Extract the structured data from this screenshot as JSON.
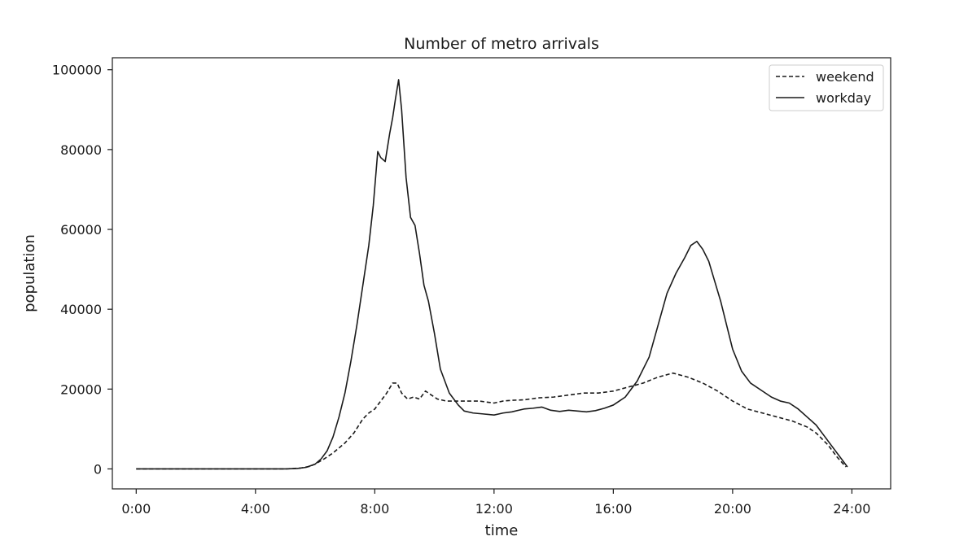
{
  "chart_data": {
    "type": "line",
    "title": "Number of metro arrivals",
    "xlabel": "time",
    "ylabel": "population",
    "xlim": [
      -0.8,
      25.3
    ],
    "ylim": [
      -5000,
      103000
    ],
    "xticks": [
      0,
      4,
      8,
      12,
      16,
      20,
      24
    ],
    "xtick_labels": [
      "0:00",
      "4:00",
      "8:00",
      "12:00",
      "16:00",
      "20:00",
      "24:00"
    ],
    "yticks": [
      0,
      20000,
      40000,
      60000,
      80000,
      100000
    ],
    "ytick_labels": [
      "0",
      "20000",
      "40000",
      "60000",
      "80000",
      "100000"
    ],
    "grid": false,
    "legend_position": "top-right",
    "series": [
      {
        "name": "weekend",
        "style": "dashed",
        "color": "#1a1a1a",
        "x": [
          0,
          1,
          2,
          3,
          4,
          5,
          5.5,
          5.8,
          6,
          6.3,
          6.6,
          7,
          7.3,
          7.6,
          7.8,
          8,
          8.2,
          8.4,
          8.6,
          8.75,
          8.9,
          9.1,
          9.3,
          9.5,
          9.7,
          9.9,
          10.1,
          10.4,
          10.7,
          11,
          11.5,
          12,
          12.3,
          12.6,
          13,
          13.5,
          14,
          14.5,
          15,
          15.5,
          16,
          16.5,
          17,
          17.5,
          18,
          18.5,
          19,
          19.5,
          20,
          20.5,
          21,
          21.5,
          22,
          22.5,
          22.8,
          23.2,
          23.5,
          23.8
        ],
        "values": [
          0,
          0,
          0,
          0,
          0,
          0,
          200,
          600,
          1200,
          2500,
          4000,
          6500,
          9000,
          12500,
          14000,
          15000,
          17000,
          19000,
          21500,
          21500,
          19000,
          17500,
          18000,
          17500,
          19500,
          18500,
          17500,
          17000,
          17000,
          17000,
          17000,
          16500,
          17000,
          17200,
          17300,
          17800,
          18000,
          18500,
          19000,
          19000,
          19500,
          20500,
          21500,
          23000,
          24000,
          23000,
          21500,
          19500,
          17000,
          15000,
          14000,
          13000,
          12000,
          10500,
          9000,
          6000,
          3000,
          500
        ]
      },
      {
        "name": "workday",
        "style": "solid",
        "color": "#1a1a1a",
        "x": [
          0,
          1,
          2,
          3,
          4,
          5,
          5.4,
          5.7,
          6,
          6.2,
          6.4,
          6.6,
          6.8,
          7,
          7.2,
          7.4,
          7.6,
          7.8,
          7.95,
          8.1,
          8.2,
          8.35,
          8.5,
          8.6,
          8.7,
          8.8,
          8.9,
          9.05,
          9.2,
          9.35,
          9.5,
          9.65,
          9.8,
          10,
          10.2,
          10.5,
          10.8,
          11,
          11.3,
          11.6,
          12,
          12.3,
          12.6,
          13,
          13.3,
          13.6,
          13.9,
          14.2,
          14.5,
          14.8,
          15.1,
          15.4,
          15.7,
          16,
          16.4,
          16.8,
          17.2,
          17.5,
          17.8,
          18.1,
          18.4,
          18.6,
          18.8,
          19,
          19.2,
          19.4,
          19.6,
          19.8,
          20,
          20.3,
          20.6,
          21,
          21.3,
          21.6,
          21.9,
          22.2,
          22.5,
          22.8,
          23.1,
          23.4,
          23.7,
          23.85
        ],
        "values": [
          0,
          0,
          0,
          0,
          0,
          0,
          100,
          400,
          1200,
          2500,
          4500,
          8000,
          13000,
          19000,
          27000,
          36000,
          46000,
          56000,
          66000,
          79500,
          78000,
          77000,
          84000,
          88000,
          93000,
          97500,
          90000,
          73000,
          63000,
          61000,
          54000,
          46000,
          42000,
          34000,
          25000,
          19000,
          16000,
          14500,
          14000,
          13800,
          13500,
          14000,
          14300,
          15000,
          15200,
          15500,
          14700,
          14400,
          14700,
          14500,
          14300,
          14600,
          15200,
          16000,
          18000,
          22000,
          28000,
          36000,
          44000,
          49000,
          53000,
          56000,
          57000,
          55000,
          52000,
          47000,
          42000,
          36000,
          30000,
          24500,
          21500,
          19500,
          18000,
          17000,
          16500,
          15000,
          13000,
          11000,
          8000,
          5000,
          2000,
          500
        ]
      }
    ]
  }
}
